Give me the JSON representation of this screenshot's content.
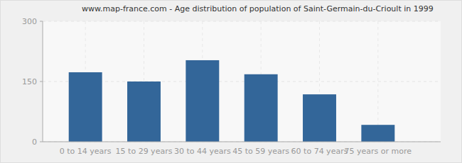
{
  "chart_data": {
    "type": "bar",
    "title": "www.map-france.com - Age distribution of population of Saint-Germain-du-Crioult in 1999",
    "categories": [
      "0 to 14 years",
      "15 to 29 years",
      "30 to 44 years",
      "45 to 59 years",
      "60 to 74 years",
      "75 years or more"
    ],
    "values": [
      173,
      150,
      203,
      168,
      118,
      42
    ],
    "color": "#336699",
    "ylim": [
      0,
      300
    ],
    "yticks": [
      0,
      150,
      300
    ],
    "grid": true
  }
}
